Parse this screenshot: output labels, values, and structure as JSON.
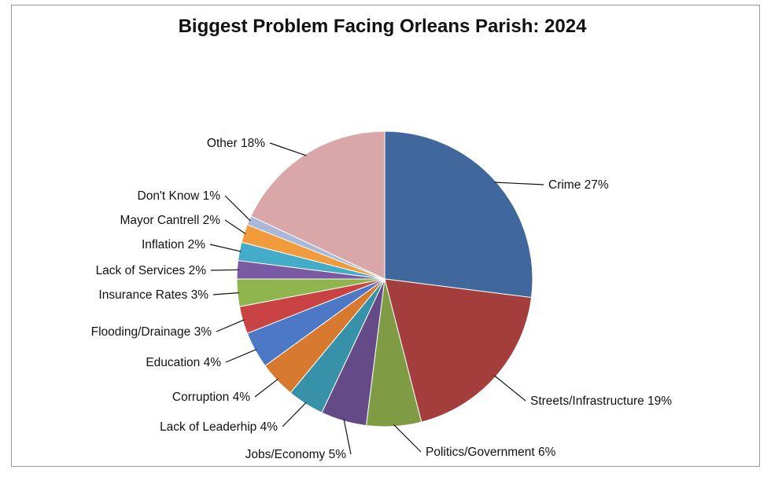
{
  "chart_data": {
    "type": "pie",
    "title": "Biggest Problem Facing Orleans Parish: 2024",
    "slices": [
      {
        "label": "Crime",
        "value": 27,
        "text": "Crime 27%",
        "color": "#41689c"
      },
      {
        "label": "Streets/Infrastructure",
        "value": 19,
        "text": "Streets/Infrastructure 19%",
        "color": "#a33e3c"
      },
      {
        "label": "Politics/Government",
        "value": 6,
        "text": "Politics/Government 6%",
        "color": "#7f9c45"
      },
      {
        "label": "Jobs/Economy",
        "value": 5,
        "text": "Jobs/Economy 5%",
        "color": "#644a86"
      },
      {
        "label": "Lack of Leaderhip",
        "value": 4,
        "text": "Lack of Leaderhip 4%",
        "color": "#3791a8"
      },
      {
        "label": "Corruption",
        "value": 4,
        "text": "Corruption 4%",
        "color": "#d77a30"
      },
      {
        "label": "Education",
        "value": 4,
        "text": "Education 4%",
        "color": "#4d78c6"
      },
      {
        "label": "Flooding/Drainage",
        "value": 3,
        "text": "Flooding/Drainage 3%",
        "color": "#c94344"
      },
      {
        "label": "Insurance Rates",
        "value": 3,
        "text": "Insurance Rates 3%",
        "color": "#8fb54f"
      },
      {
        "label": "Lack of Services",
        "value": 2,
        "text": "Lack of Services 2%",
        "color": "#7a5aa3"
      },
      {
        "label": "Inflation",
        "value": 2,
        "text": "Inflation 2%",
        "color": "#43acc9"
      },
      {
        "label": "Mayor Cantrell",
        "value": 2,
        "text": "Mayor Cantrell 2%",
        "color": "#f29b3c"
      },
      {
        "label": "Don't Know",
        "value": 1,
        "text": "Don't Know 1%",
        "color": "#a9b8d8"
      },
      {
        "label": "Other",
        "value": 18,
        "text": "Other 18%",
        "color": "#d9a7a7"
      }
    ]
  }
}
